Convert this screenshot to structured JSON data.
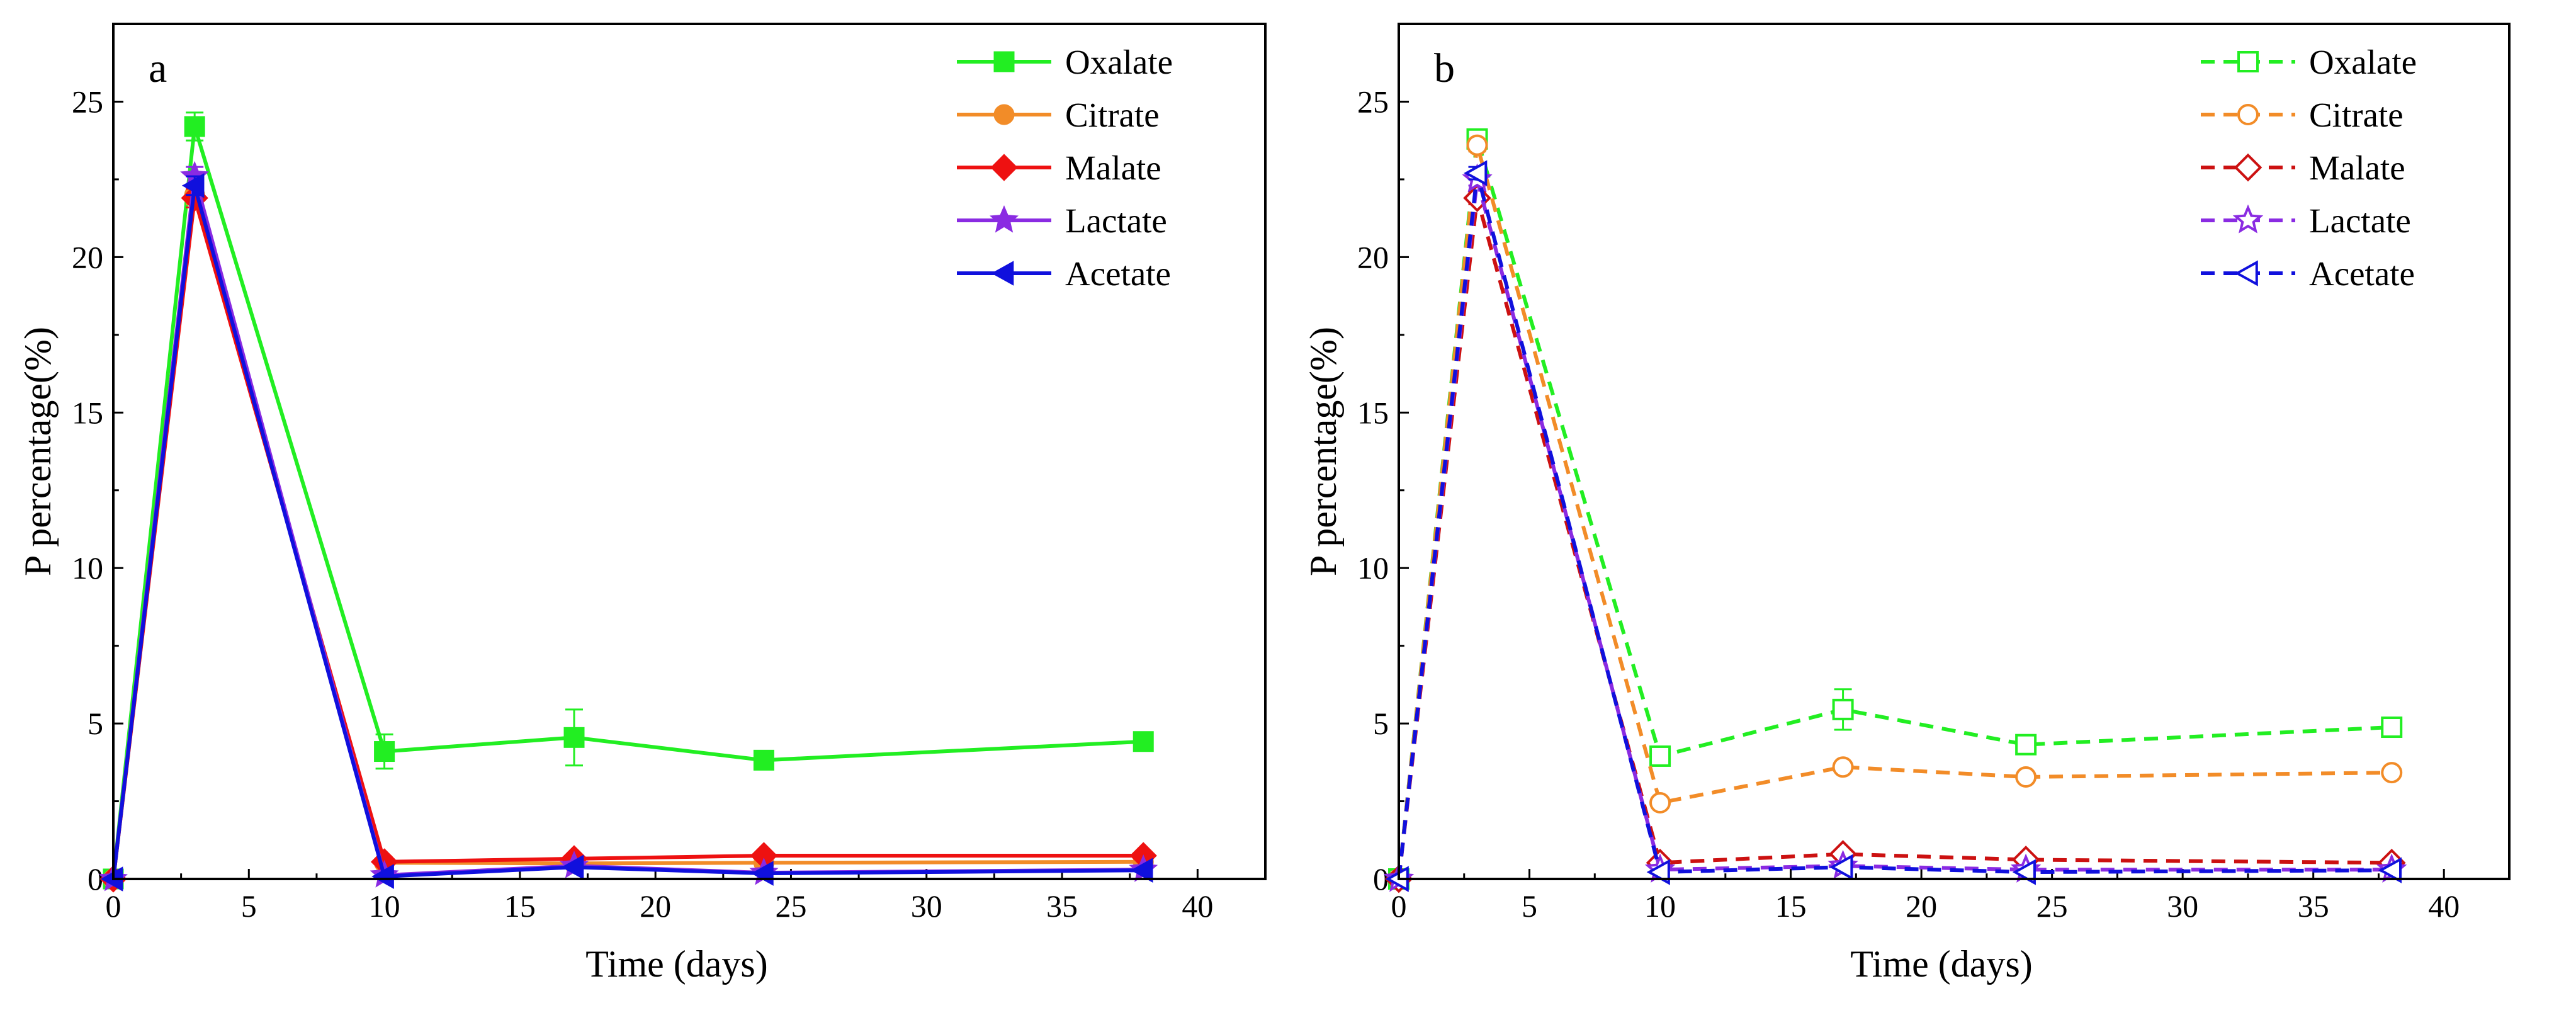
{
  "chart_data": [
    {
      "type": "line",
      "panel_label": "a",
      "line_style": "solid",
      "marker_fill": "filled",
      "xlabel": "Time (days)",
      "ylabel": "P percentage(%)",
      "xlim": [
        0,
        42.5
      ],
      "ylim": [
        0,
        27.5
      ],
      "xticks": [
        0,
        5,
        10,
        15,
        20,
        25,
        30,
        35,
        40
      ],
      "yticks": [
        0,
        5,
        10,
        15,
        20,
        25
      ],
      "legend_position": "top-right",
      "x": [
        0,
        3,
        10,
        17,
        24,
        38
      ],
      "series": [
        {
          "name": "Oxalate",
          "color": "#22ee22",
          "marker": "square",
          "values": [
            0,
            24.2,
            4.1,
            4.55,
            3.82,
            4.42
          ],
          "errors": [
            0,
            0.45,
            0.55,
            0.9,
            0.12,
            0.15
          ]
        },
        {
          "name": "Citrate",
          "color": "#f28c28",
          "marker": "circle",
          "values": [
            0,
            22.0,
            0.52,
            0.5,
            0.52,
            0.55
          ],
          "errors": [
            0,
            0.3,
            0.05,
            0.05,
            0.05,
            0.05
          ]
        },
        {
          "name": "Malate",
          "color": "#ee1111",
          "marker": "diamond",
          "values": [
            0,
            21.9,
            0.55,
            0.65,
            0.75,
            0.75
          ],
          "errors": [
            0,
            0.3,
            0.05,
            0.05,
            0.05,
            0.05
          ]
        },
        {
          "name": "Lactate",
          "color": "#8a2be2",
          "marker": "star",
          "values": [
            0,
            22.6,
            0.12,
            0.42,
            0.2,
            0.3
          ],
          "errors": [
            0,
            0.3,
            0.05,
            0.05,
            0.05,
            0.05
          ]
        },
        {
          "name": "Acetate",
          "color": "#1010dd",
          "marker": "triangle-left",
          "values": [
            0,
            22.3,
            0.08,
            0.38,
            0.18,
            0.28
          ],
          "errors": [
            0,
            0.3,
            0.05,
            0.05,
            0.05,
            0.05
          ]
        }
      ]
    },
    {
      "type": "line",
      "panel_label": "b",
      "line_style": "dashed",
      "marker_fill": "open",
      "xlabel": "Time (days)",
      "ylabel": "P percentage(%)",
      "xlim": [
        0,
        42.5
      ],
      "ylim": [
        0,
        27.5
      ],
      "xticks": [
        0,
        5,
        10,
        15,
        20,
        25,
        30,
        35,
        40
      ],
      "yticks": [
        0,
        5,
        10,
        15,
        20,
        25
      ],
      "legend_position": "top-right",
      "x": [
        0,
        3,
        10,
        17,
        24,
        38
      ],
      "series": [
        {
          "name": "Oxalate",
          "color": "#22ee22",
          "marker": "square",
          "values": [
            0,
            23.8,
            3.95,
            5.45,
            4.32,
            4.88
          ],
          "errors": [
            0,
            0.2,
            0.2,
            0.65,
            0.15,
            0.15
          ]
        },
        {
          "name": "Citrate",
          "color": "#f28c28",
          "marker": "circle",
          "values": [
            0,
            23.6,
            2.45,
            3.6,
            3.28,
            3.42
          ],
          "errors": [
            0,
            0.2,
            0.1,
            0.15,
            0.1,
            0.1
          ]
        },
        {
          "name": "Malate",
          "color": "#cc1111",
          "marker": "diamond",
          "values": [
            0,
            21.9,
            0.52,
            0.8,
            0.62,
            0.52
          ],
          "errors": [
            0,
            0.2,
            0.05,
            0.05,
            0.05,
            0.05
          ]
        },
        {
          "name": "Lactate",
          "color": "#8a2be2",
          "marker": "star",
          "values": [
            0,
            22.5,
            0.3,
            0.42,
            0.3,
            0.3
          ],
          "errors": [
            0,
            0.2,
            0.05,
            0.05,
            0.05,
            0.05
          ]
        },
        {
          "name": "Acetate",
          "color": "#1010dd",
          "marker": "triangle-left",
          "values": [
            0,
            22.7,
            0.22,
            0.38,
            0.22,
            0.28
          ],
          "errors": [
            0,
            0.2,
            0.05,
            0.05,
            0.05,
            0.05
          ]
        }
      ]
    }
  ]
}
